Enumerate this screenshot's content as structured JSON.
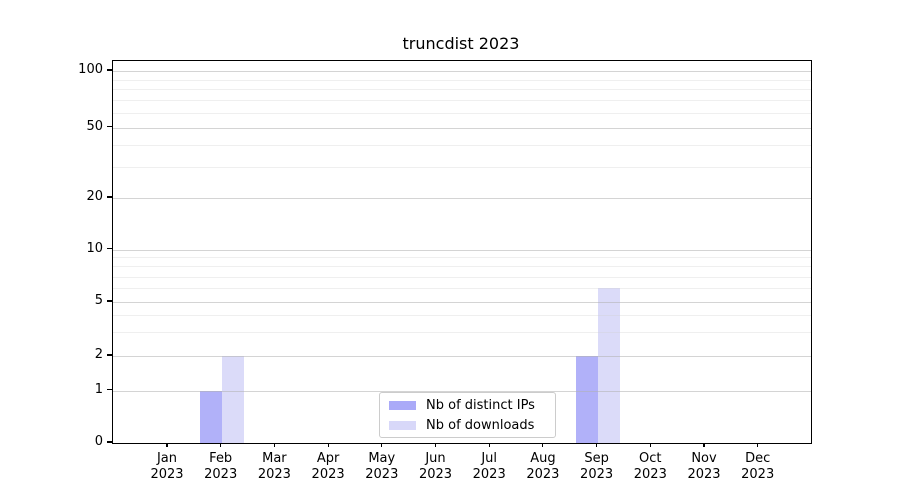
{
  "chart_data": {
    "type": "bar",
    "title": "truncdist 2023",
    "categories": [
      {
        "month": "Jan",
        "year": "2023"
      },
      {
        "month": "Feb",
        "year": "2023"
      },
      {
        "month": "Mar",
        "year": "2023"
      },
      {
        "month": "Apr",
        "year": "2023"
      },
      {
        "month": "May",
        "year": "2023"
      },
      {
        "month": "Jun",
        "year": "2023"
      },
      {
        "month": "Jul",
        "year": "2023"
      },
      {
        "month": "Aug",
        "year": "2023"
      },
      {
        "month": "Sep",
        "year": "2023"
      },
      {
        "month": "Oct",
        "year": "2023"
      },
      {
        "month": "Nov",
        "year": "2023"
      },
      {
        "month": "Dec",
        "year": "2023"
      }
    ],
    "series": [
      {
        "name": "Nb of distinct IPs",
        "color": "#aaaaf8",
        "values": [
          0,
          1,
          0,
          0,
          0,
          0,
          0,
          0,
          2,
          0,
          0,
          0
        ]
      },
      {
        "name": "Nb of downloads",
        "color": "#d8d8f9",
        "values": [
          0,
          2,
          0,
          0,
          0,
          0,
          0,
          0,
          6,
          0,
          0,
          0
        ]
      }
    ],
    "y_axis": {
      "scale": "symlog-like",
      "ticks": [
        100,
        50,
        20,
        10,
        5,
        2,
        1,
        0
      ],
      "minor_gridlines": [
        3,
        4,
        6,
        7,
        8,
        9,
        30,
        40,
        60,
        70,
        80,
        90
      ],
      "ylim": [
        0,
        110
      ]
    },
    "legend": {
      "position": "lower center",
      "entries": [
        "Nb of distinct IPs",
        "Nb of downloads"
      ]
    },
    "grid": "on",
    "background_color": "#ffffff",
    "frame_color": "#000000"
  }
}
